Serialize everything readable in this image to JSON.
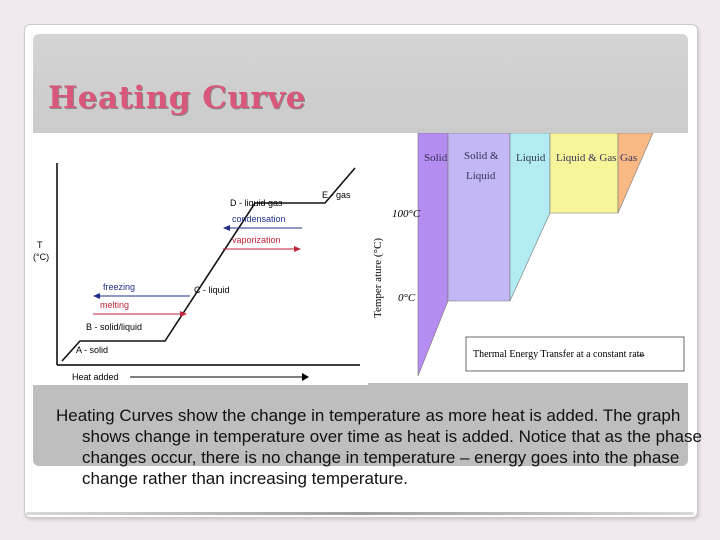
{
  "slide": {
    "title": "Heating Curve",
    "caption": "Heating Curves show the change in temperature as more heat is added.  The graph shows change in temperature over time as heat is added. Notice that as the phase changes occur, there is no change in temperature – energy goes into the phase change rather than increasing temperature."
  },
  "left_diagram": {
    "y_axis_label_line1": "T",
    "y_axis_label_line2": "(°C)",
    "x_axis_label": "Heat added",
    "points": {
      "a": "A - solid",
      "b": "B - solid/liquid",
      "c": "C - liquid",
      "d": "D - liquid gas",
      "e": "E - gas"
    },
    "process_labels": {
      "freezing": "freezing",
      "melting": "melting",
      "condensation": "condensation",
      "vaporization": "vaporization"
    },
    "colors": {
      "curve": "#111111",
      "cool_process": "#1f2f8a",
      "heat_process": "#c0263a"
    }
  },
  "phase_chart": {
    "y_axis_label": "Temper ature (°C)",
    "tick_100": "100°C",
    "tick_0": "0°C",
    "x_axis_label": "Thermal Energy Transfer at a constant rate",
    "x_axis_arrow": "→",
    "regions": [
      {
        "label_line1": "Solid",
        "label_line2": "",
        "color": "#b58cf0"
      },
      {
        "label_line1": "Solid &",
        "label_line2": "Liquid",
        "color": "#c3b7f5"
      },
      {
        "label_line1": "Liquid",
        "label_line2": "",
        "color": "#b2ecf2"
      },
      {
        "label_line1": "Liquid & Gas",
        "label_line2": "",
        "color": "#f7f59a"
      },
      {
        "label_line1": "Gas",
        "label_line2": "",
        "color": "#f8b985"
      }
    ],
    "colors": {
      "label_text": "#333355"
    }
  }
}
